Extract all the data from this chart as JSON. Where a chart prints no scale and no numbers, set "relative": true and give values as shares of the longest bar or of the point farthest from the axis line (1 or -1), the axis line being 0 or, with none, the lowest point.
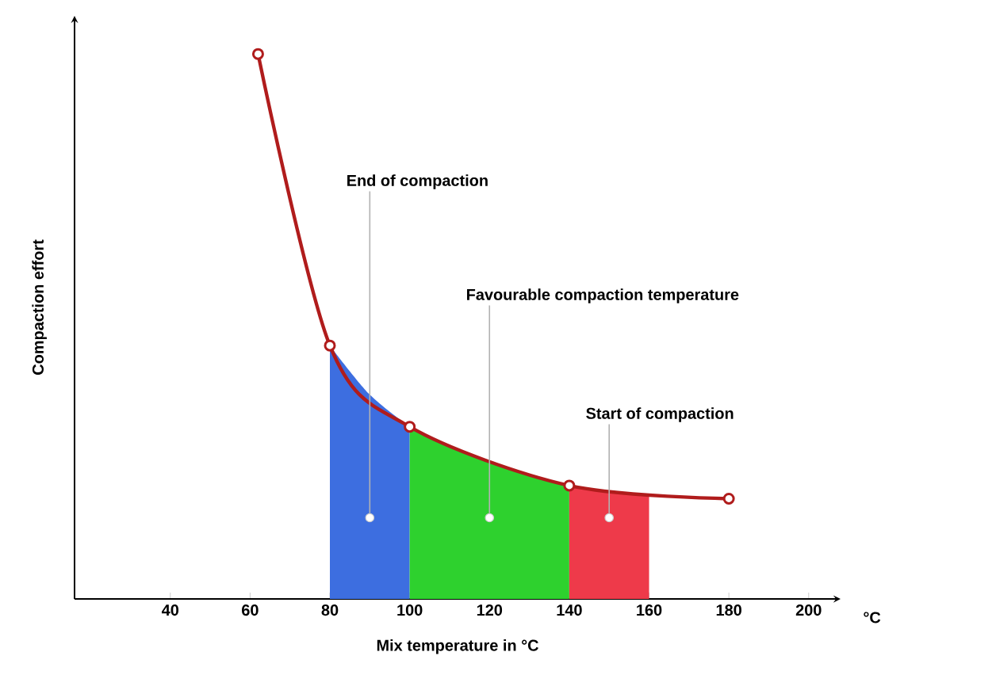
{
  "chart_data": {
    "type": "line",
    "relative": true,
    "xlabel": "Mix temperature in °C",
    "ylabel": "Compaction effort",
    "x": [
      62,
      80,
      100,
      140,
      180
    ],
    "series": [
      {
        "type": "area",
        "x": [
          80,
          90,
          100
        ],
        "color": "#3d6ee0",
        "values": [
          0.465,
          0.375,
          0.316
        ]
      },
      {
        "type": "area",
        "x": [
          100,
          120,
          140
        ],
        "color": "#2ed12e",
        "values": [
          0.316,
          0.25,
          0.208
        ]
      },
      {
        "type": "area",
        "x": [
          140,
          150,
          160
        ],
        "color": "#ee3a4a",
        "values": [
          0.208,
          0.197,
          0.19
        ]
      },
      {
        "color": "#b01c1c",
        "values": [
          1,
          0.465,
          0.316,
          0.208,
          0.184
        ],
        "marker": "circle"
      }
    ],
    "xlim": [
      16,
      208
    ],
    "xticks": [
      40,
      60,
      80,
      100,
      120,
      140,
      160,
      180,
      200
    ],
    "annotations": [
      {
        "text": "End of compaction",
        "x": 90,
        "y": 0.149
      },
      {
        "text": "Favourable  compaction temperature",
        "x": 120,
        "y": 0.149
      },
      {
        "text": "Start of compaction",
        "x": 150,
        "y": 0.149
      },
      "°C"
    ]
  }
}
